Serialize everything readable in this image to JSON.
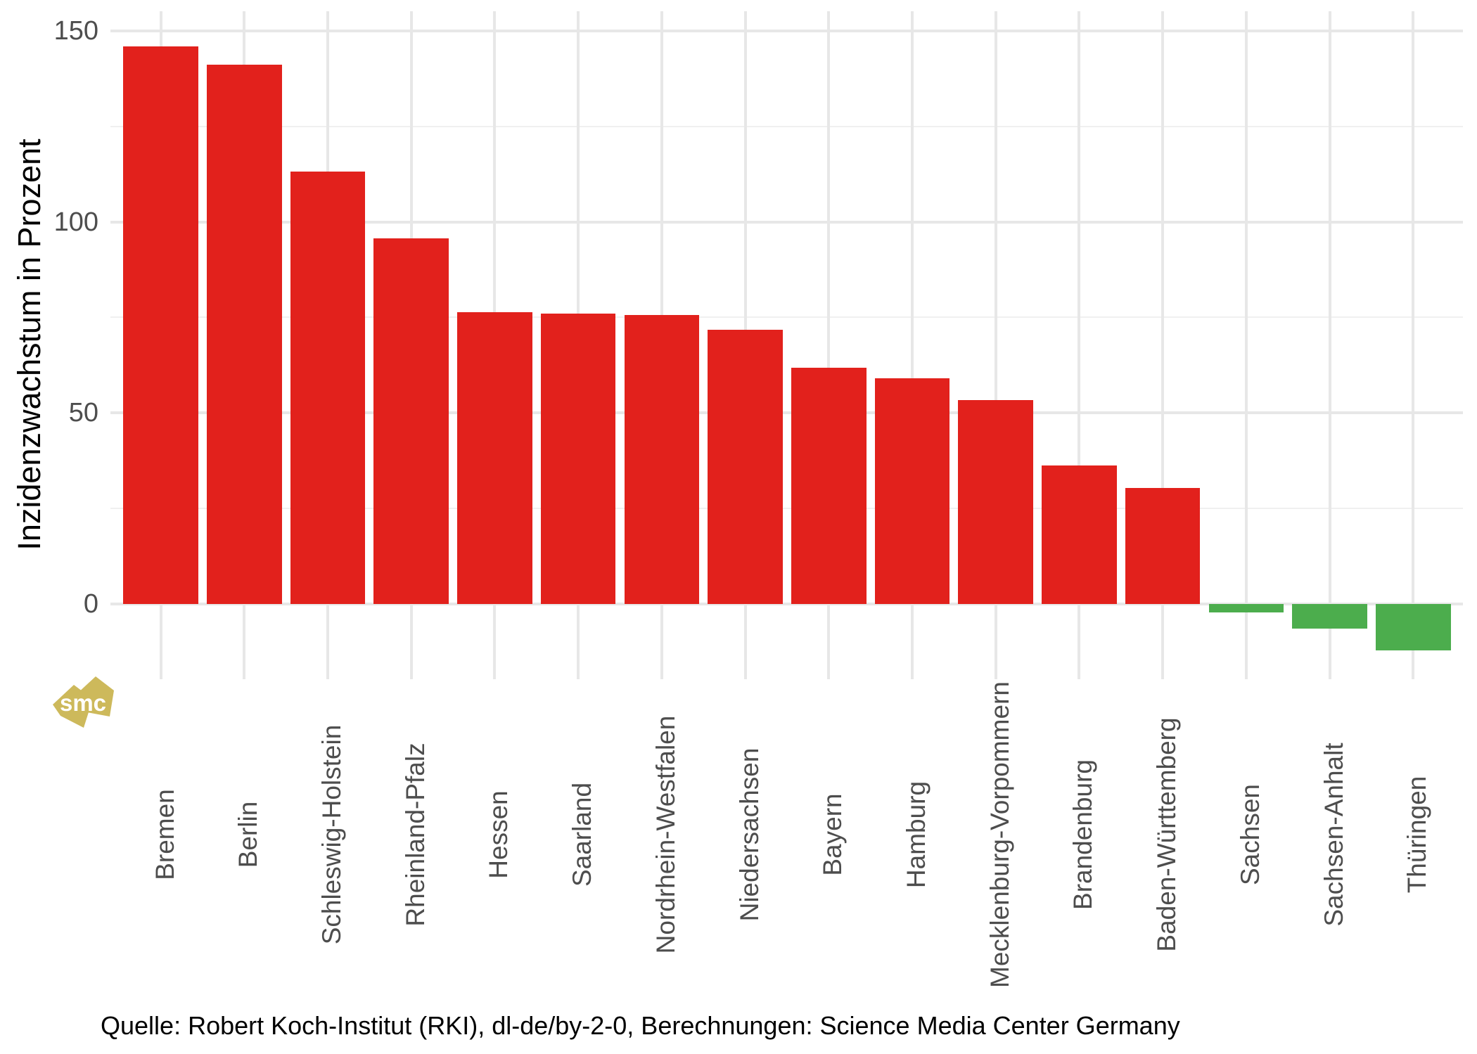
{
  "chart_data": {
    "type": "bar",
    "title": "",
    "xlabel": "",
    "ylabel": "Inzidenzwachstum in Prozent",
    "categories": [
      "Bremen",
      "Berlin",
      "Schleswig-Holstein",
      "Rheinland-Pfalz",
      "Hessen",
      "Saarland",
      "Nordrhein-Westfalen",
      "Niedersachsen",
      "Bayern",
      "Hamburg",
      "Mecklenburg-Vorpommern",
      "Brandenburg",
      "Baden-Württemberg",
      "Sachsen",
      "Sachsen-Anhalt",
      "Thüringen"
    ],
    "values": [
      145.9,
      141.1,
      113.1,
      95.7,
      76.4,
      76.0,
      75.6,
      71.8,
      61.8,
      59.1,
      53.4,
      36.3,
      30.4,
      -2.2,
      -6.4,
      -12.1
    ],
    "y_ticks": [
      0,
      50,
      100,
      150
    ],
    "y_minor_ticks": [
      25,
      75,
      125
    ],
    "ylim": [
      -19.7,
      155.1
    ],
    "grid": true,
    "legend": "none",
    "bar_color_positive": "#E2211C",
    "bar_color_negative": "#4CAD4D"
  },
  "colors": {
    "grid_major": "#e7e7e7",
    "grid_minor": "#f0f0f0",
    "tick_text": "#4d4d4d",
    "axis_title_text": "#000000",
    "logo_gold": "#CDB95B"
  },
  "caption": "Quelle: Robert Koch-Institut (RKI), dl-de/by-2-0, Berechnungen: Science Media Center Germany",
  "watermark": {
    "label": "smc"
  }
}
